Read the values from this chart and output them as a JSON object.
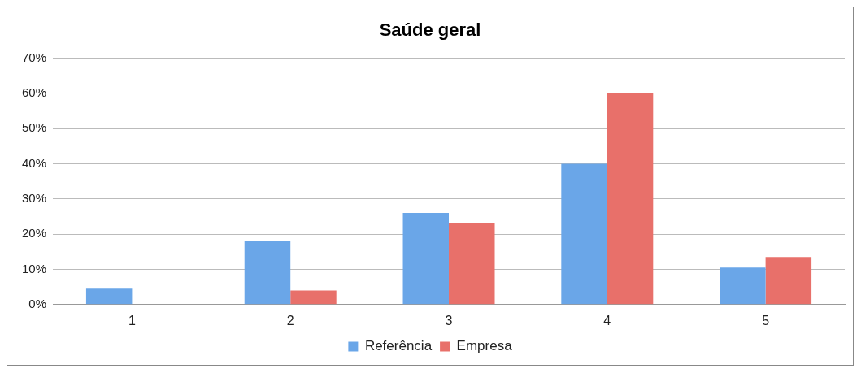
{
  "chart_data": {
    "type": "bar",
    "title": "Saúde geral",
    "categories": [
      "1",
      "2",
      "3",
      "4",
      "5"
    ],
    "series": [
      {
        "name": "Referência",
        "color": "#6aa6e8",
        "values": [
          4.5,
          18,
          26,
          40,
          10.5
        ]
      },
      {
        "name": "Empresa",
        "color": "#e8706a",
        "values": [
          0,
          4,
          23,
          60,
          13.5
        ]
      }
    ],
    "ylim": [
      0,
      70
    ],
    "yticks": [
      {
        "value": 0,
        "label": "0%"
      },
      {
        "value": 10,
        "label": "10%"
      },
      {
        "value": 20,
        "label": "20%"
      },
      {
        "value": 30,
        "label": "30%"
      },
      {
        "value": 40,
        "label": "40%"
      },
      {
        "value": 50,
        "label": "50%"
      },
      {
        "value": 60,
        "label": "60%"
      },
      {
        "value": 70,
        "label": "70%"
      }
    ],
    "grid": "y",
    "legend": "bottom"
  }
}
